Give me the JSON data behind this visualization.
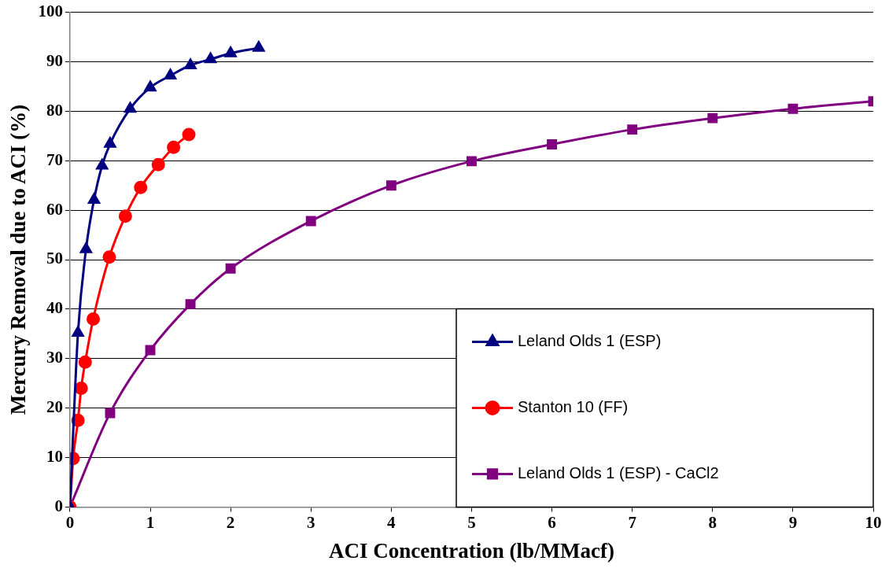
{
  "chart_data": {
    "type": "line",
    "xlabel": "ACI Concentration (lb/MMacf)",
    "ylabel": "Mercury Removal due to ACI (%)",
    "xlim": [
      0,
      10
    ],
    "xticks": [
      0,
      1,
      2,
      3,
      4,
      5,
      6,
      7,
      8,
      9,
      10
    ],
    "ylim": [
      0,
      100
    ],
    "yticks": [
      0,
      10,
      20,
      30,
      40,
      50,
      60,
      70,
      80,
      90,
      100
    ],
    "grid": "y",
    "legend": "bottom right",
    "line_style": "solid",
    "series": [
      {
        "name": "Leland Olds 1 (ESP)",
        "color": "#000080",
        "marker": "triangle",
        "x": [
          0,
          0.1,
          0.2,
          0.3,
          0.4,
          0.5,
          0.75,
          1,
          1.25,
          1.5,
          1.75,
          2,
          2.35
        ],
        "values": [
          0,
          35.2,
          52.1,
          62.1,
          69,
          73.4,
          80.5,
          84.8,
          87.2,
          89.3,
          90.5,
          91.7,
          92.8
        ]
      },
      {
        "name": "Stanton 10 (FF)",
        "color": "#ff0000",
        "marker": "circle",
        "x": [
          0,
          0.04,
          0.1,
          0.14,
          0.19,
          0.29,
          0.49,
          0.69,
          0.88,
          1.1,
          1.29,
          1.48
        ],
        "values": [
          0,
          9.8,
          17.5,
          24,
          29.3,
          38,
          50.5,
          58.8,
          64.6,
          69.2,
          72.7,
          75.3
        ]
      },
      {
        "name": "Leland Olds 1 (ESP) - CaCl2",
        "color": "#800080",
        "marker": "square",
        "x": [
          0,
          0.5,
          1,
          1.5,
          2,
          3,
          4,
          5,
          6,
          7,
          8,
          9,
          10
        ],
        "values": [
          0,
          19,
          31.7,
          41,
          48.2,
          57.8,
          65,
          69.9,
          73.3,
          76.3,
          78.6,
          80.5,
          82
        ]
      }
    ]
  }
}
